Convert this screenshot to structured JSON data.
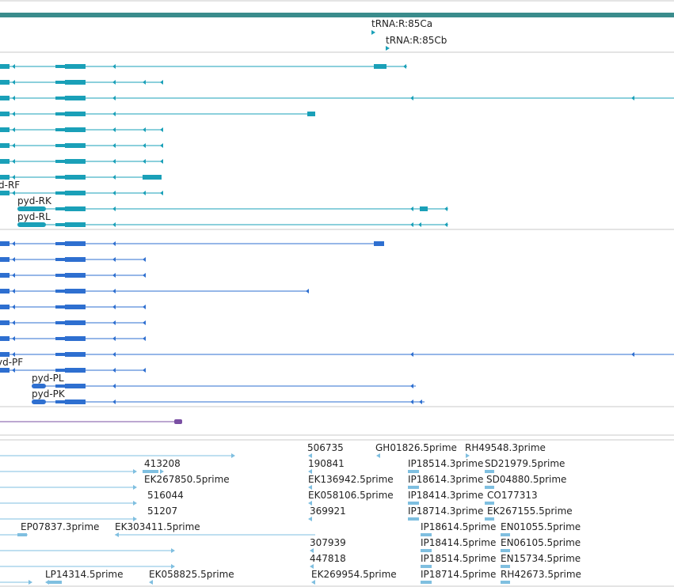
{
  "colors": {
    "gene_bar": "#3a8c8c",
    "transcript_group_1": "#1aa0b8",
    "transcript_group_2": "#2e6fd0",
    "purple_feature": "#7a4fa3",
    "est": "#7fbfe0",
    "divider": "#c8c8c8"
  },
  "trna_labels": [
    "tRNA:R:85Ca",
    "tRNA:R:85Cb"
  ],
  "transcript_labels_group_1": [
    "d-RF",
    "pyd-RK",
    "pyd-RL"
  ],
  "transcript_labels_group_2": [
    "yd-PF",
    "pyd-PL",
    "pyd-PK"
  ],
  "est_labels": [
    "506735",
    "GH01826.5prime",
    "RH49548.3prime",
    "413208",
    "190841",
    "IP18514.3prime",
    "SD21979.5prime",
    "EK267850.5prime",
    "EK136942.5prime",
    "IP18614.3prime",
    "SD04880.5prime",
    "516044",
    "EK058106.5prime",
    "IP18414.3prime",
    "CO177313",
    "51207",
    "369921",
    "IP18714.3prime",
    "EK267155.5prime",
    "EP07837.3prime",
    "EK303411.5prime",
    "IP18614.5prime",
    "EN01055.5prime",
    "307939",
    "IP18414.5prime",
    "EN06105.5prime",
    "447818",
    "IP18514.5prime",
    "EN15734.5prime",
    "LP14314.5prime",
    "EK058825.5prime",
    "EK269954.5prime",
    "IP18714.5prime",
    "RH42673.5prime"
  ]
}
